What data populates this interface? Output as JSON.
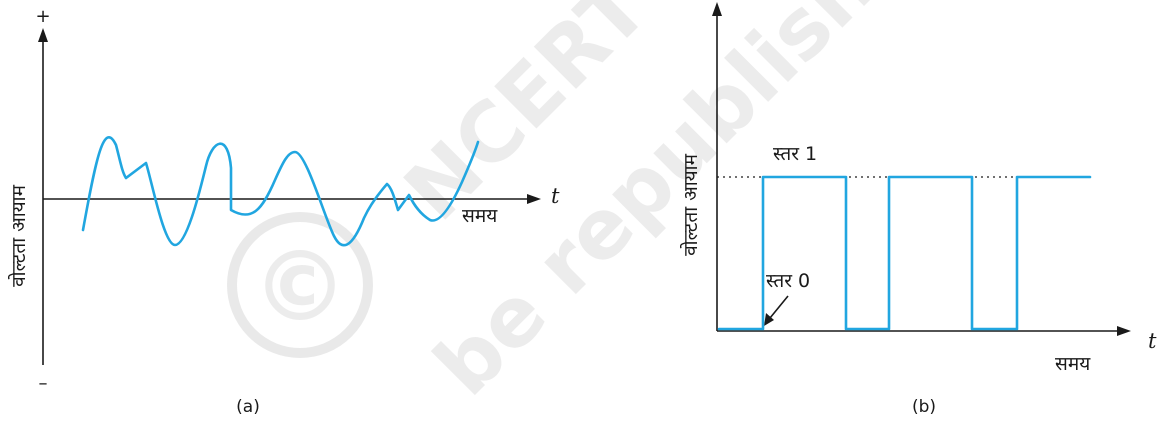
{
  "watermark": {
    "symbol": "©",
    "line1": "NCERT",
    "line2": "be republished",
    "color": "#d7d7d7"
  },
  "panel_a": {
    "plus_sign": "+",
    "minus_sign": "–",
    "y_label": "वोल्टता आयाम",
    "x_label": "समय",
    "x_var": "t",
    "caption": "(a)",
    "signal_color": "#21a6e0"
  },
  "panel_b": {
    "y_label": "वोल्टता आयाम",
    "x_label": "समय",
    "x_var": "t",
    "level1_label": "स्तर 1",
    "level0_label": "स्तर 0",
    "caption": "(b)",
    "signal_color": "#21a6e0",
    "digital_levels": [
      0,
      1,
      1,
      0,
      1,
      1,
      0,
      1
    ]
  }
}
